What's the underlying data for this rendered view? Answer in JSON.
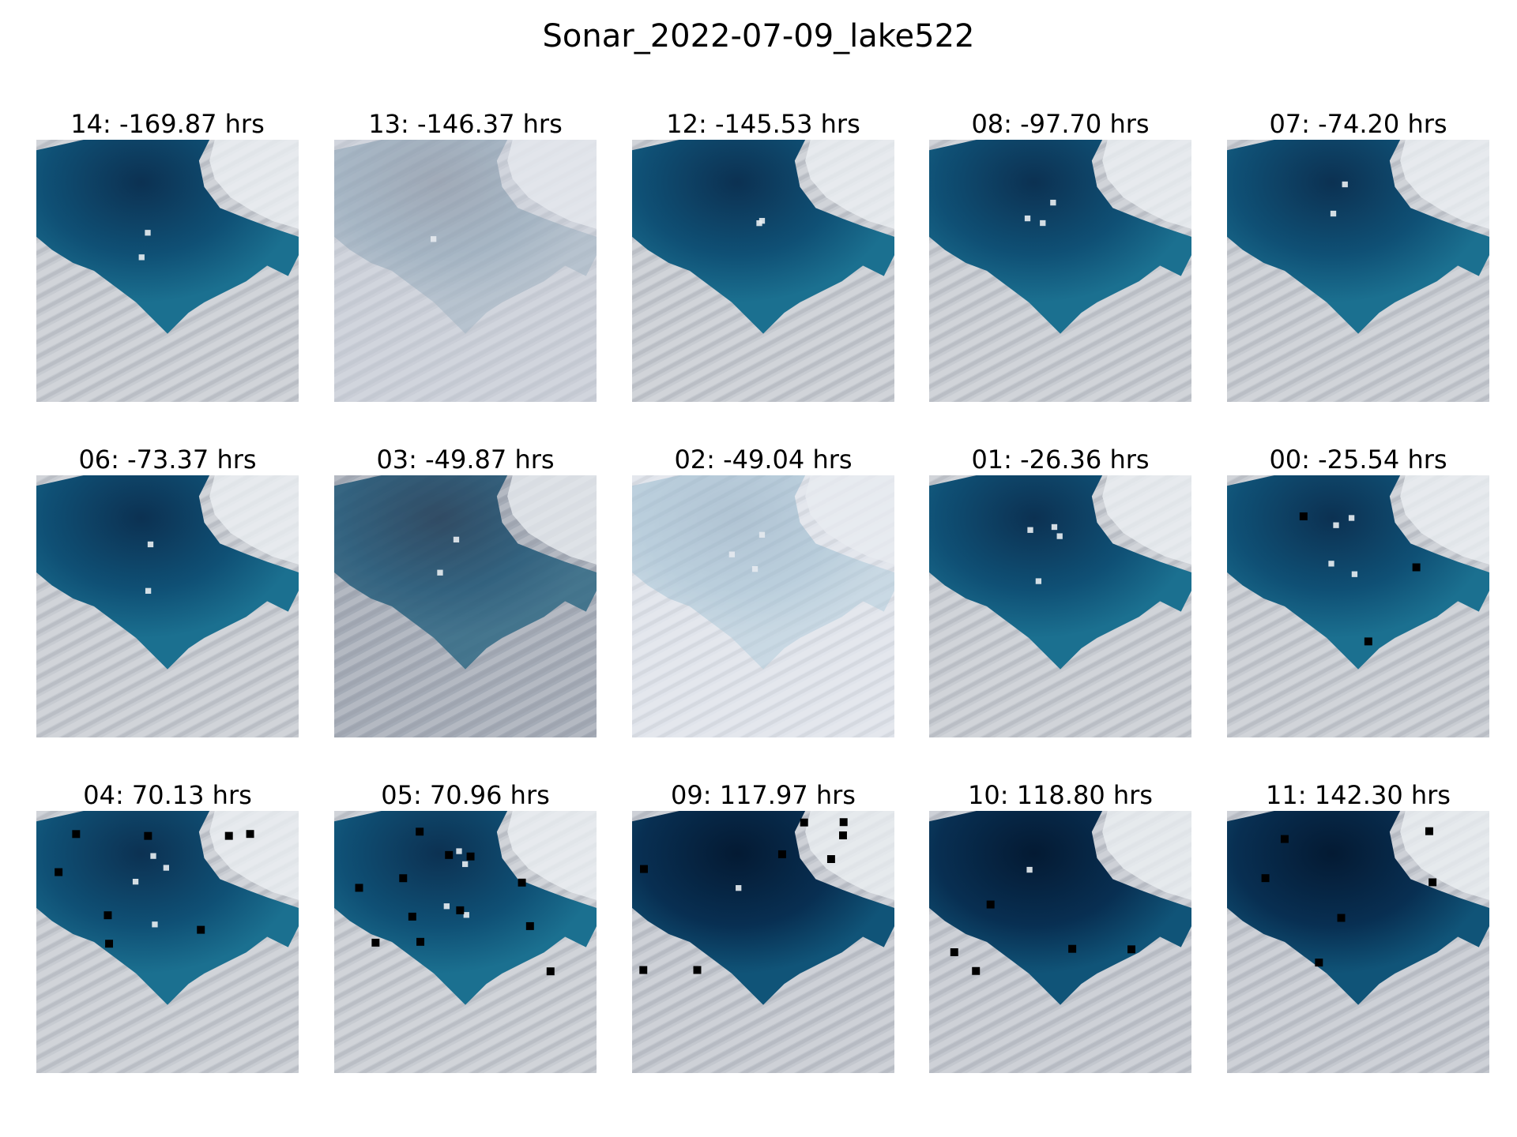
{
  "title": "Sonar_2022-07-09_lake522",
  "panels": [
    {
      "label": "14: -169.87 hrs",
      "variant": "clear",
      "mask_count": 0,
      "bright_spots": 2
    },
    {
      "label": "13: -146.37 hrs",
      "variant": "cloudy",
      "mask_count": 0,
      "bright_spots": 1
    },
    {
      "label": "12: -145.53 hrs",
      "variant": "clear",
      "mask_count": 0,
      "bright_spots": 2
    },
    {
      "label": "08: -97.70 hrs",
      "variant": "clear",
      "mask_count": 0,
      "bright_spots": 3
    },
    {
      "label": "07: -74.20 hrs",
      "variant": "clear",
      "mask_count": 0,
      "bright_spots": 2
    },
    {
      "label": "06: -73.37 hrs",
      "variant": "clear",
      "mask_count": 0,
      "bright_spots": 2
    },
    {
      "label": "03: -49.87 hrs",
      "variant": "hazy",
      "mask_count": 0,
      "bright_spots": 2
    },
    {
      "label": "02: -49.04 hrs",
      "variant": "bright",
      "mask_count": 0,
      "bright_spots": 3
    },
    {
      "label": "01: -26.36 hrs",
      "variant": "clear",
      "mask_count": 0,
      "bright_spots": 4
    },
    {
      "label": "00: -25.54 hrs",
      "variant": "clear",
      "mask_count": 3,
      "bright_spots": 4
    },
    {
      "label": "04: 70.13 hrs",
      "variant": "clear",
      "mask_count": 8,
      "bright_spots": 4
    },
    {
      "label": "05: 70.96 hrs",
      "variant": "clear",
      "mask_count": 12,
      "bright_spots": 4
    },
    {
      "label": "09: 117.97 hrs",
      "variant": "dark",
      "mask_count": 8,
      "bright_spots": 1
    },
    {
      "label": "10: 118.80 hrs",
      "variant": "dark",
      "mask_count": 5,
      "bright_spots": 1
    },
    {
      "label": "11: 142.30 hrs",
      "variant": "dark",
      "mask_count": 6,
      "bright_spots": 0
    }
  ],
  "colors": {
    "lake_deep": "#0b2c4c",
    "lake_mid": "#0f4f72",
    "lake_edge": "#1a6e8e",
    "ice": "#c4c8cf",
    "ice_light": "#e4e8ee",
    "mask": "#000000"
  }
}
